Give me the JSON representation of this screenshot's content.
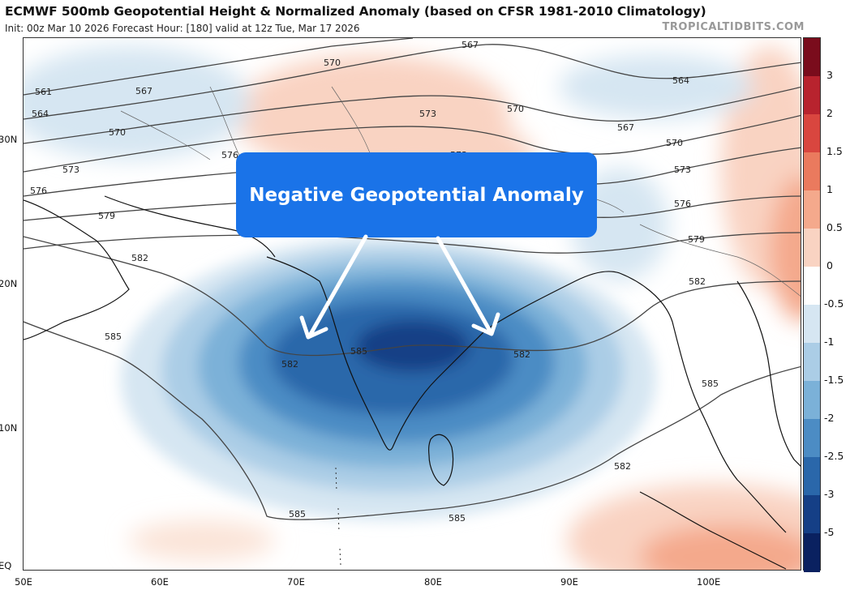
{
  "header": {
    "title": "ECMWF 500mb Geopotential Height & Normalized Anomaly (based on CFSR 1981-2010 Climatology)",
    "subtitle": "Init: 00z Mar 10 2026   Forecast Hour: [180]   valid at 12z Tue, Mar 17 2026",
    "brand": "TROPICALTIDBITS.COM"
  },
  "annotation": {
    "text": "Negative Geopotential Anomaly"
  },
  "colorbar": {
    "labels": [
      "3",
      "2",
      "1.5",
      "1",
      "0.5",
      "0",
      "-0.5",
      "-1",
      "-1.5",
      "-2",
      "-2.5",
      "-3",
      "-5"
    ],
    "colors": [
      "#7a0c1c",
      "#b8232e",
      "#d9463f",
      "#ea7a5e",
      "#f4a98c",
      "#f9d3c2",
      "#ffffff",
      "#d6e6f2",
      "#abcde6",
      "#7bb1d8",
      "#4c8cc4",
      "#2a67aa",
      "#153f86",
      "#0a2160"
    ]
  },
  "axes": {
    "lat_labels": [
      "30N",
      "20N",
      "10N",
      "EQ"
    ],
    "lon_labels": [
      "50E",
      "60E",
      "70E",
      "80E",
      "90E",
      "100E"
    ]
  },
  "contours": {
    "labels": [
      "561",
      "564",
      "567",
      "570",
      "573",
      "576",
      "579",
      "582",
      "585",
      "570",
      "573",
      "570",
      "567",
      "564",
      "567",
      "570",
      "573",
      "576",
      "579",
      "582",
      "585",
      "582",
      "582",
      "582",
      "585",
      "585",
      "585",
      "573",
      "576"
    ]
  }
}
